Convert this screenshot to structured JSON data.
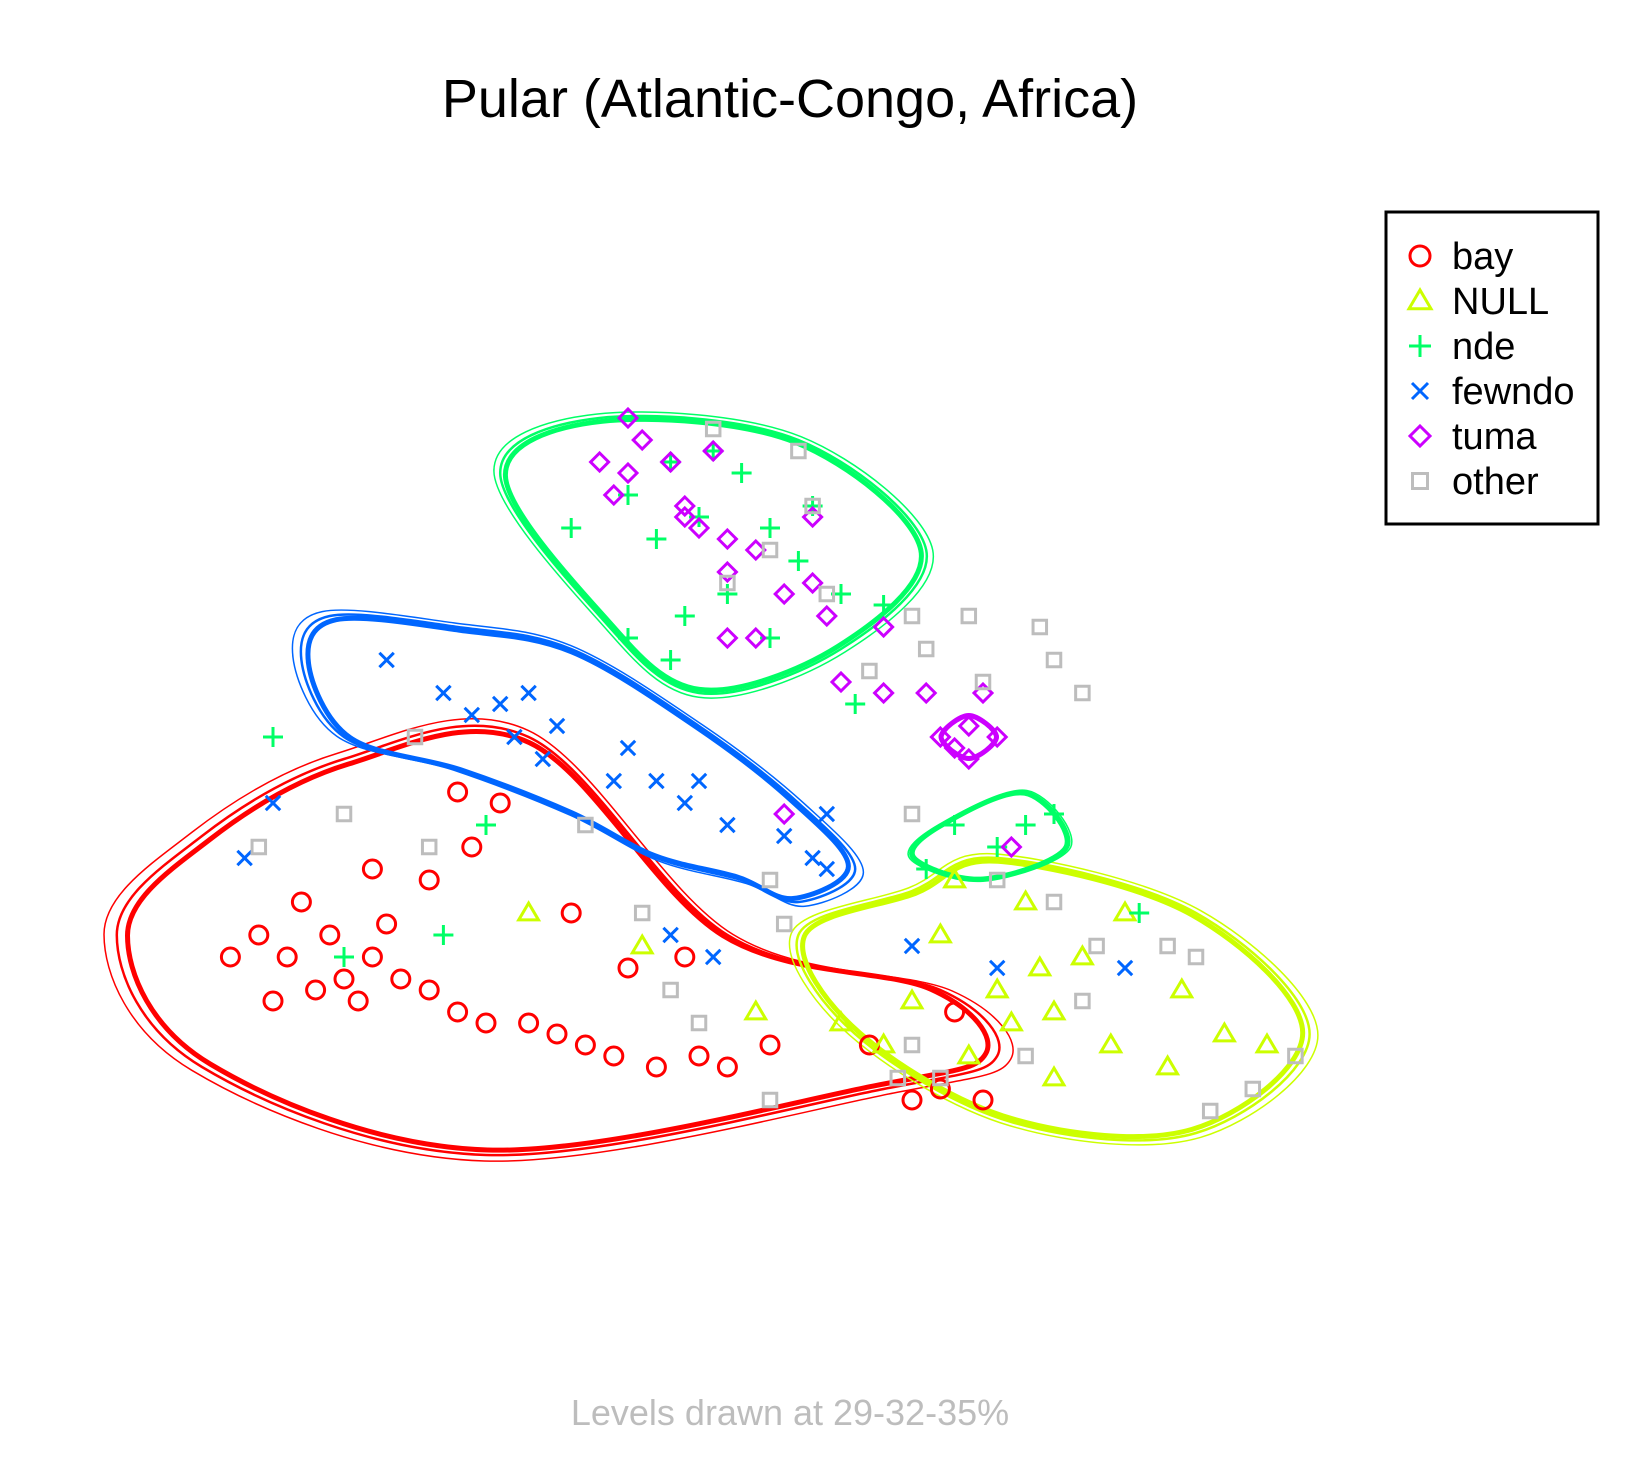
{
  "chart_data": {
    "type": "scatter",
    "title": "Pular (Atlantic-Congo, Africa)",
    "caption": "Levels drawn at 29-32-35%",
    "xlabel": "",
    "ylabel": "",
    "axes_visible": false,
    "grid": false,
    "legend": {
      "position": "top-right",
      "entries": [
        {
          "label": "bay",
          "marker": "circle",
          "color": "#ff0000"
        },
        {
          "label": "NULL",
          "marker": "triangle",
          "color": "#ccff00"
        },
        {
          "label": "nde",
          "marker": "plus",
          "color": "#00ff66"
        },
        {
          "label": "fewndo",
          "marker": "cross",
          "color": "#0066ff"
        },
        {
          "label": "tuma",
          "marker": "diamond",
          "color": "#cc00ff"
        },
        {
          "label": "other",
          "marker": "square",
          "color": "#bdbdbd"
        }
      ]
    },
    "contour_levels": [
      29,
      32,
      35
    ],
    "series": [
      {
        "name": "bay",
        "color": "#ff0000",
        "contours": [
          [
            [
              0.1,
              0.44
            ],
            [
              0.2,
              0.51
            ],
            [
              0.33,
              0.53
            ],
            [
              0.47,
              0.35
            ],
            [
              0.62,
              0.3
            ],
            [
              0.66,
              0.24
            ],
            [
              0.58,
              0.21
            ],
            [
              0.3,
              0.15
            ],
            [
              0.1,
              0.23
            ],
            [
              0.04,
              0.35
            ]
          ]
        ],
        "points": [
          [
            0.19,
            0.35
          ],
          [
            0.2,
            0.31
          ],
          [
            0.22,
            0.33
          ],
          [
            0.21,
            0.29
          ],
          [
            0.18,
            0.3
          ],
          [
            0.16,
            0.33
          ],
          [
            0.24,
            0.31
          ],
          [
            0.23,
            0.36
          ],
          [
            0.26,
            0.3
          ],
          [
            0.28,
            0.28
          ],
          [
            0.3,
            0.27
          ],
          [
            0.33,
            0.27
          ],
          [
            0.35,
            0.26
          ],
          [
            0.37,
            0.25
          ],
          [
            0.39,
            0.24
          ],
          [
            0.42,
            0.23
          ],
          [
            0.45,
            0.24
          ],
          [
            0.47,
            0.23
          ],
          [
            0.5,
            0.25
          ],
          [
            0.17,
            0.38
          ],
          [
            0.22,
            0.41
          ],
          [
            0.14,
            0.35
          ],
          [
            0.12,
            0.33
          ],
          [
            0.15,
            0.29
          ],
          [
            0.26,
            0.4
          ],
          [
            0.29,
            0.43
          ],
          [
            0.31,
            0.47
          ],
          [
            0.28,
            0.48
          ],
          [
            0.36,
            0.37
          ],
          [
            0.4,
            0.32
          ],
          [
            0.44,
            0.33
          ],
          [
            0.57,
            0.25
          ],
          [
            0.6,
            0.2
          ],
          [
            0.62,
            0.21
          ],
          [
            0.65,
            0.2
          ],
          [
            0.63,
            0.28
          ]
        ]
      },
      {
        "name": "NULL",
        "color": "#ccff00",
        "contours": [
          [
            [
              0.52,
              0.35
            ],
            [
              0.6,
              0.39
            ],
            [
              0.66,
              0.42
            ],
            [
              0.8,
              0.37
            ],
            [
              0.88,
              0.26
            ],
            [
              0.8,
              0.17
            ],
            [
              0.67,
              0.18
            ],
            [
              0.56,
              0.26
            ]
          ]
        ],
        "points": [
          [
            0.62,
            0.35
          ],
          [
            0.66,
            0.3
          ],
          [
            0.7,
            0.28
          ],
          [
            0.74,
            0.25
          ],
          [
            0.78,
            0.23
          ],
          [
            0.82,
            0.26
          ],
          [
            0.79,
            0.3
          ],
          [
            0.72,
            0.33
          ],
          [
            0.68,
            0.38
          ],
          [
            0.75,
            0.37
          ],
          [
            0.58,
            0.25
          ],
          [
            0.6,
            0.29
          ],
          [
            0.64,
            0.24
          ],
          [
            0.7,
            0.22
          ],
          [
            0.85,
            0.25
          ],
          [
            0.63,
            0.4
          ],
          [
            0.55,
            0.27
          ],
          [
            0.67,
            0.27
          ],
          [
            0.69,
            0.32
          ],
          [
            0.33,
            0.37
          ],
          [
            0.41,
            0.34
          ],
          [
            0.49,
            0.28
          ]
        ]
      },
      {
        "name": "nde",
        "color": "#00ff66",
        "contours": [
          [
            [
              0.31,
              0.77
            ],
            [
              0.38,
              0.82
            ],
            [
              0.52,
              0.8
            ],
            [
              0.61,
              0.7
            ],
            [
              0.55,
              0.61
            ],
            [
              0.45,
              0.57
            ],
            [
              0.38,
              0.64
            ]
          ],
          [
            [
              0.62,
              0.45
            ],
            [
              0.68,
              0.48
            ],
            [
              0.71,
              0.43
            ],
            [
              0.65,
              0.4
            ],
            [
              0.6,
              0.42
            ]
          ]
        ],
        "points": [
          [
            0.4,
            0.75
          ],
          [
            0.43,
            0.78
          ],
          [
            0.46,
            0.79
          ],
          [
            0.48,
            0.77
          ],
          [
            0.42,
            0.71
          ],
          [
            0.45,
            0.73
          ],
          [
            0.5,
            0.72
          ],
          [
            0.52,
            0.69
          ],
          [
            0.55,
            0.66
          ],
          [
            0.58,
            0.65
          ],
          [
            0.47,
            0.66
          ],
          [
            0.44,
            0.64
          ],
          [
            0.4,
            0.62
          ],
          [
            0.43,
            0.6
          ],
          [
            0.5,
            0.62
          ],
          [
            0.36,
            0.72
          ],
          [
            0.53,
            0.74
          ],
          [
            0.63,
            0.45
          ],
          [
            0.66,
            0.43
          ],
          [
            0.68,
            0.45
          ],
          [
            0.7,
            0.46
          ],
          [
            0.61,
            0.41
          ],
          [
            0.76,
            0.37
          ],
          [
            0.56,
            0.56
          ],
          [
            0.15,
            0.53
          ],
          [
            0.3,
            0.45
          ],
          [
            0.27,
            0.35
          ],
          [
            0.2,
            0.33
          ]
        ]
      },
      {
        "name": "fewndo",
        "color": "#0066ff",
        "contours": [
          [
            [
              0.17,
              0.6
            ],
            [
              0.19,
              0.64
            ],
            [
              0.28,
              0.63
            ],
            [
              0.36,
              0.61
            ],
            [
              0.45,
              0.54
            ],
            [
              0.52,
              0.47
            ],
            [
              0.56,
              0.41
            ],
            [
              0.52,
              0.38
            ],
            [
              0.48,
              0.4
            ],
            [
              0.42,
              0.42
            ],
            [
              0.36,
              0.46
            ],
            [
              0.28,
              0.5
            ],
            [
              0.2,
              0.53
            ]
          ]
        ],
        "points": [
          [
            0.23,
            0.6
          ],
          [
            0.27,
            0.57
          ],
          [
            0.29,
            0.55
          ],
          [
            0.31,
            0.56
          ],
          [
            0.32,
            0.53
          ],
          [
            0.33,
            0.57
          ],
          [
            0.34,
            0.51
          ],
          [
            0.35,
            0.54
          ],
          [
            0.4,
            0.52
          ],
          [
            0.39,
            0.49
          ],
          [
            0.42,
            0.49
          ],
          [
            0.44,
            0.47
          ],
          [
            0.45,
            0.49
          ],
          [
            0.47,
            0.45
          ],
          [
            0.51,
            0.44
          ],
          [
            0.53,
            0.42
          ],
          [
            0.54,
            0.41
          ],
          [
            0.13,
            0.42
          ],
          [
            0.15,
            0.47
          ],
          [
            0.43,
            0.35
          ],
          [
            0.46,
            0.33
          ],
          [
            0.6,
            0.34
          ],
          [
            0.66,
            0.32
          ],
          [
            0.75,
            0.32
          ],
          [
            0.54,
            0.46
          ]
        ]
      },
      {
        "name": "tuma",
        "color": "#cc00ff",
        "contours": [
          [
            [
              0.62,
              0.53
            ],
            [
              0.64,
              0.55
            ],
            [
              0.66,
              0.53
            ],
            [
              0.64,
              0.51
            ]
          ]
        ],
        "points": [
          [
            0.4,
            0.82
          ],
          [
            0.41,
            0.8
          ],
          [
            0.38,
            0.78
          ],
          [
            0.4,
            0.77
          ],
          [
            0.43,
            0.78
          ],
          [
            0.46,
            0.79
          ],
          [
            0.39,
            0.75
          ],
          [
            0.44,
            0.74
          ],
          [
            0.45,
            0.72
          ],
          [
            0.44,
            0.73
          ],
          [
            0.47,
            0.71
          ],
          [
            0.49,
            0.7
          ],
          [
            0.51,
            0.66
          ],
          [
            0.53,
            0.67
          ],
          [
            0.47,
            0.68
          ],
          [
            0.53,
            0.73
          ],
          [
            0.54,
            0.64
          ],
          [
            0.58,
            0.63
          ],
          [
            0.47,
            0.62
          ],
          [
            0.49,
            0.62
          ],
          [
            0.55,
            0.58
          ],
          [
            0.58,
            0.57
          ],
          [
            0.61,
            0.57
          ],
          [
            0.65,
            0.57
          ],
          [
            0.64,
            0.54
          ],
          [
            0.62,
            0.53
          ],
          [
            0.63,
            0.52
          ],
          [
            0.64,
            0.51
          ],
          [
            0.66,
            0.53
          ],
          [
            0.51,
            0.46
          ],
          [
            0.67,
            0.43
          ]
        ]
      },
      {
        "name": "other",
        "color": "#bdbdbd",
        "contours": [],
        "points": [
          [
            0.46,
            0.81
          ],
          [
            0.52,
            0.79
          ],
          [
            0.53,
            0.74
          ],
          [
            0.5,
            0.7
          ],
          [
            0.47,
            0.67
          ],
          [
            0.54,
            0.66
          ],
          [
            0.6,
            0.64
          ],
          [
            0.64,
            0.64
          ],
          [
            0.69,
            0.63
          ],
          [
            0.7,
            0.6
          ],
          [
            0.65,
            0.58
          ],
          [
            0.72,
            0.57
          ],
          [
            0.57,
            0.59
          ],
          [
            0.61,
            0.61
          ],
          [
            0.25,
            0.53
          ],
          [
            0.14,
            0.43
          ],
          [
            0.2,
            0.46
          ],
          [
            0.26,
            0.43
          ],
          [
            0.37,
            0.45
          ],
          [
            0.5,
            0.4
          ],
          [
            0.41,
            0.37
          ],
          [
            0.51,
            0.36
          ],
          [
            0.6,
            0.46
          ],
          [
            0.66,
            0.4
          ],
          [
            0.7,
            0.38
          ],
          [
            0.73,
            0.34
          ],
          [
            0.78,
            0.34
          ],
          [
            0.8,
            0.33
          ],
          [
            0.72,
            0.29
          ],
          [
            0.68,
            0.24
          ],
          [
            0.62,
            0.22
          ],
          [
            0.84,
            0.21
          ],
          [
            0.81,
            0.19
          ],
          [
            0.87,
            0.24
          ],
          [
            0.43,
            0.3
          ],
          [
            0.45,
            0.27
          ],
          [
            0.5,
            0.2
          ],
          [
            0.59,
            0.22
          ],
          [
            0.6,
            0.25
          ]
        ]
      }
    ]
  }
}
